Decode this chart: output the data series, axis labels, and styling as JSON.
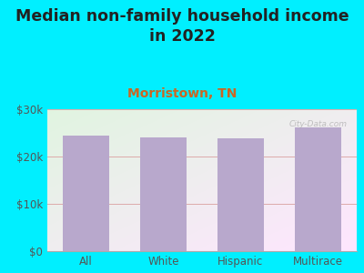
{
  "title": "Median non-family household income\nin 2022",
  "subtitle": "Morristown, TN",
  "categories": [
    "All",
    "White",
    "Hispanic",
    "Multirace"
  ],
  "values": [
    24500,
    24000,
    23800,
    26200
  ],
  "bar_color": "#b8a8cc",
  "title_fontsize": 12.5,
  "subtitle_fontsize": 10,
  "subtitle_color": "#cc6622",
  "title_color": "#222222",
  "background_outer": "#00efff",
  "ylim": [
    0,
    30000
  ],
  "yticks": [
    0,
    10000,
    20000,
    30000
  ],
  "ytick_labels": [
    "$0",
    "$10k",
    "$20k",
    "$30k"
  ],
  "watermark": "City-Data.com",
  "grid_color": "#ddaaaa",
  "axis_label_color": "#555555",
  "tick_fontsize": 8.5
}
